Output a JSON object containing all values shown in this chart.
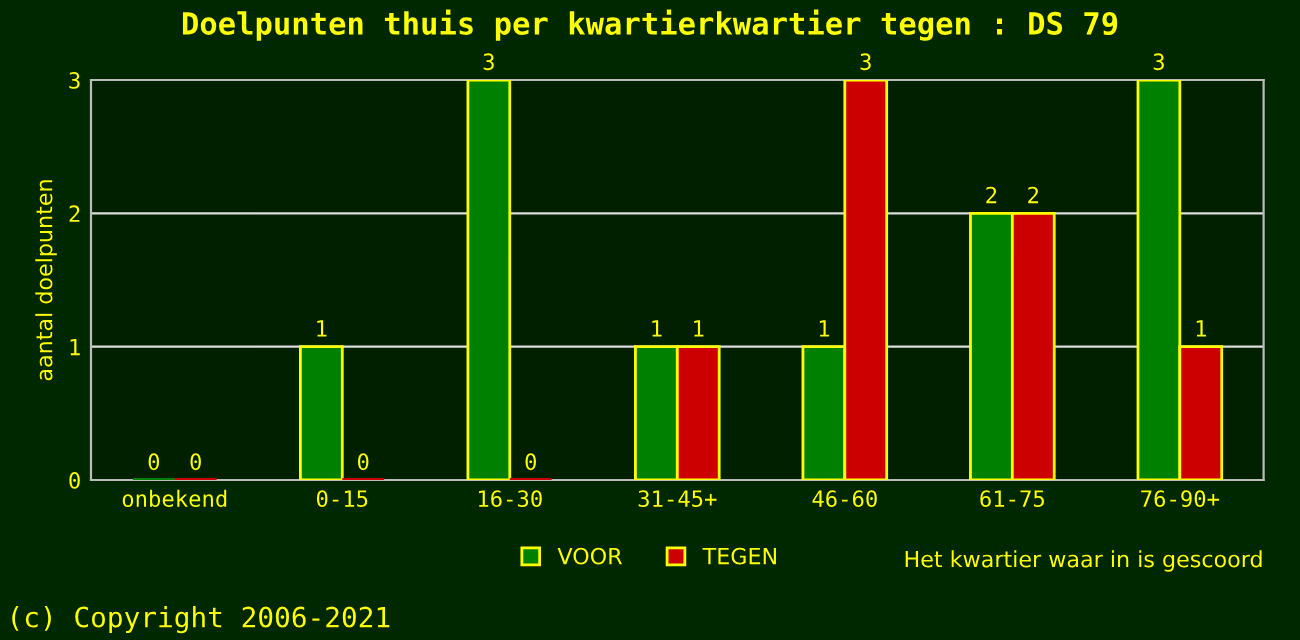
{
  "chart_data": {
    "type": "bar",
    "title": "Doelpunten thuis per kwartierkwartier tegen : DS 79",
    "xlabel": "Het kwartier waar in is gescoord",
    "ylabel": "aantal doelpunten",
    "categories": [
      "onbekend",
      "0-15",
      "16-30",
      "31-45+",
      "46-60",
      "61-75",
      "76-90+"
    ],
    "series": [
      {
        "name": "VOOR",
        "color": "#008000",
        "values": [
          0,
          1,
          3,
          1,
          1,
          2,
          3
        ]
      },
      {
        "name": "TEGEN",
        "color": "#cc0000",
        "values": [
          0,
          0,
          0,
          1,
          3,
          2,
          1
        ]
      }
    ],
    "ylim": [
      0,
      3
    ],
    "yticks": [
      0,
      1,
      2,
      3
    ],
    "grid": "y",
    "legend": "bottom",
    "data_labels": true,
    "annotations": [
      "(c) Copyright 2006-2021"
    ]
  }
}
